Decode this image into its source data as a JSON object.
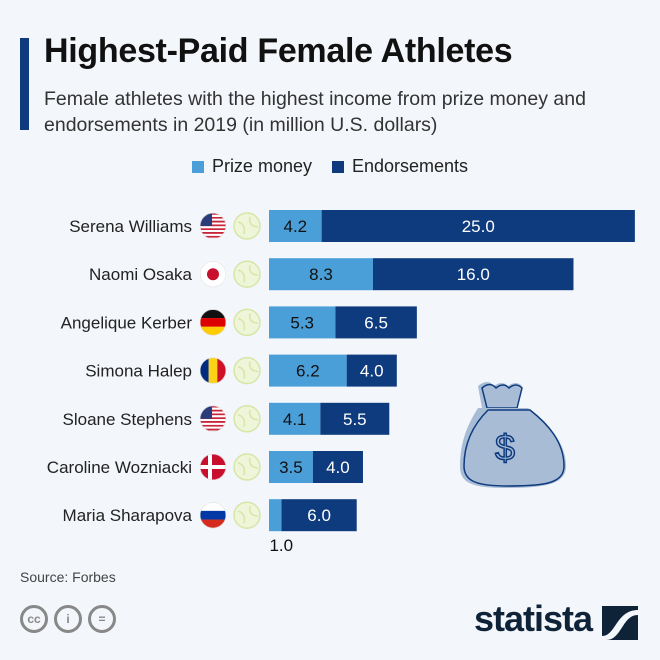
{
  "chart_data": {
    "type": "bar",
    "stacked": true,
    "orientation": "horizontal",
    "title": "Highest-Paid Female Athletes",
    "subtitle": "Female athletes with the highest income from prize money and endorsements in 2019 (in million U.S. dollars)",
    "categories": [
      "Serena Williams",
      "Naomi Osaka",
      "Angelique Kerber",
      "Simona Halep",
      "Sloane Stephens",
      "Caroline Wozniacki",
      "Maria Sharapova"
    ],
    "flags": [
      "us",
      "jp",
      "de",
      "ro",
      "us",
      "dk",
      "ru"
    ],
    "series": [
      {
        "name": "Prize money",
        "color": "#4a9fd8",
        "values": [
          4.2,
          8.3,
          5.3,
          6.2,
          4.1,
          3.5,
          1.0
        ]
      },
      {
        "name": "Endorsements",
        "color": "#0e3b7e",
        "values": [
          25.0,
          16.0,
          6.5,
          4.0,
          5.5,
          4.0,
          6.0
        ]
      }
    ],
    "legend_position": "top-center",
    "grid": false
  },
  "footer": {
    "source": "Source: Forbes",
    "brand": "statista",
    "license_icons": [
      "cc-icon",
      "by-icon",
      "nd-icon"
    ]
  }
}
